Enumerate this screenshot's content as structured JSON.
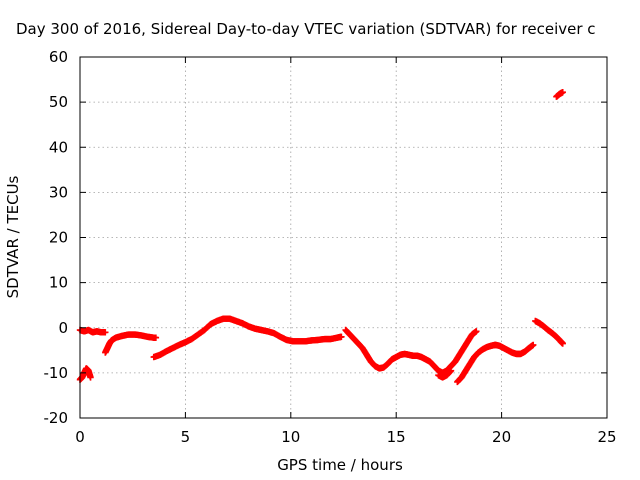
{
  "chart_data": {
    "type": "scatter",
    "title": "Day 300 of 2016, Sidereal Day-to-day VTEC variation (SDTVAR) for receiver c",
    "xlabel": "GPS time / hours",
    "ylabel": "SDTVAR / TECUs",
    "xlim": [
      0,
      25
    ],
    "ylim": [
      -20,
      60
    ],
    "xticks": [
      0,
      5,
      10,
      15,
      20,
      25
    ],
    "yticks": [
      -20,
      -10,
      0,
      10,
      20,
      30,
      40,
      50,
      60
    ],
    "x_tick_labels": [
      "0",
      "5",
      "10",
      "15",
      "20",
      "25"
    ],
    "y_tick_labels": [
      "-20",
      "-10",
      "0",
      "10",
      "20",
      "30",
      "40",
      "50",
      "60"
    ],
    "grid": true,
    "legend": "none",
    "marker": "plus",
    "color": "#ff0000",
    "series": [
      {
        "points": [
          [
            0.0,
            -11.5
          ],
          [
            0.1,
            -11.0
          ],
          [
            0.2,
            -10.0
          ],
          [
            0.3,
            -9.0
          ],
          [
            0.4,
            -9.5
          ],
          [
            0.5,
            -11.0
          ]
        ]
      },
      {
        "points": [
          [
            0.0,
            -0.5
          ],
          [
            0.2,
            -0.8
          ],
          [
            0.4,
            -0.5
          ],
          [
            0.6,
            -1.0
          ],
          [
            0.8,
            -0.8
          ],
          [
            1.0,
            -1.0
          ],
          [
            1.2,
            -1.0
          ]
        ]
      },
      {
        "points": [
          [
            1.2,
            -5.5
          ],
          [
            1.3,
            -4.5
          ],
          [
            1.4,
            -3.5
          ],
          [
            1.5,
            -2.8
          ],
          [
            1.7,
            -2.2
          ],
          [
            2.0,
            -1.8
          ],
          [
            2.3,
            -1.5
          ],
          [
            2.6,
            -1.5
          ],
          [
            2.9,
            -1.7
          ],
          [
            3.2,
            -2.0
          ],
          [
            3.5,
            -2.2
          ],
          [
            3.6,
            -2.2
          ]
        ]
      },
      {
        "points": [
          [
            3.5,
            -6.5
          ],
          [
            3.8,
            -6.0
          ],
          [
            4.1,
            -5.2
          ],
          [
            4.4,
            -4.5
          ],
          [
            4.7,
            -3.8
          ],
          [
            5.0,
            -3.2
          ],
          [
            5.3,
            -2.5
          ],
          [
            5.6,
            -1.5
          ],
          [
            5.9,
            -0.5
          ],
          [
            6.2,
            0.8
          ],
          [
            6.5,
            1.5
          ],
          [
            6.8,
            2.0
          ],
          [
            7.1,
            2.0
          ],
          [
            7.4,
            1.5
          ],
          [
            7.7,
            1.0
          ],
          [
            8.0,
            0.3
          ],
          [
            8.3,
            -0.2
          ],
          [
            8.6,
            -0.5
          ],
          [
            8.9,
            -0.8
          ],
          [
            9.2,
            -1.2
          ],
          [
            9.5,
            -2.0
          ],
          [
            9.8,
            -2.7
          ],
          [
            10.1,
            -3.0
          ],
          [
            10.4,
            -3.0
          ],
          [
            10.7,
            -3.0
          ],
          [
            11.0,
            -2.8
          ],
          [
            11.3,
            -2.7
          ],
          [
            11.6,
            -2.5
          ],
          [
            11.9,
            -2.5
          ],
          [
            12.2,
            -2.2
          ],
          [
            12.4,
            -2.0
          ]
        ]
      },
      {
        "points": [
          [
            12.6,
            -0.5
          ],
          [
            12.8,
            -1.5
          ],
          [
            13.0,
            -2.5
          ],
          [
            13.2,
            -3.5
          ],
          [
            13.4,
            -4.5
          ],
          [
            13.6,
            -6.0
          ],
          [
            13.8,
            -7.5
          ],
          [
            14.0,
            -8.5
          ],
          [
            14.2,
            -9.0
          ],
          [
            14.4,
            -8.8
          ],
          [
            14.6,
            -8.0
          ],
          [
            14.8,
            -7.0
          ],
          [
            15.0,
            -6.5
          ],
          [
            15.2,
            -6.0
          ],
          [
            15.4,
            -5.8
          ],
          [
            15.6,
            -6.0
          ],
          [
            15.8,
            -6.2
          ],
          [
            16.0,
            -6.2
          ],
          [
            16.2,
            -6.5
          ],
          [
            16.4,
            -7.0
          ],
          [
            16.6,
            -7.5
          ],
          [
            16.8,
            -8.5
          ],
          [
            17.0,
            -9.5
          ],
          [
            17.2,
            -10.0
          ],
          [
            17.4,
            -9.5
          ],
          [
            17.6,
            -8.5
          ],
          [
            17.8,
            -7.5
          ],
          [
            18.0,
            -6.0
          ],
          [
            18.2,
            -4.5
          ],
          [
            18.4,
            -3.0
          ],
          [
            18.6,
            -1.5
          ],
          [
            18.8,
            -0.8
          ]
        ]
      },
      {
        "points": [
          [
            17.0,
            -10.5
          ],
          [
            17.2,
            -11.0
          ],
          [
            17.4,
            -10.5
          ],
          [
            17.6,
            -9.5
          ]
        ]
      },
      {
        "points": [
          [
            17.9,
            -12.0
          ],
          [
            18.1,
            -11.0
          ],
          [
            18.3,
            -9.5
          ],
          [
            18.5,
            -8.0
          ],
          [
            18.7,
            -6.5
          ],
          [
            18.9,
            -5.5
          ],
          [
            19.1,
            -4.8
          ],
          [
            19.3,
            -4.3
          ],
          [
            19.5,
            -4.0
          ],
          [
            19.7,
            -3.8
          ],
          [
            19.9,
            -4.0
          ],
          [
            20.1,
            -4.5
          ],
          [
            20.3,
            -5.0
          ],
          [
            20.5,
            -5.5
          ],
          [
            20.7,
            -5.8
          ],
          [
            20.9,
            -5.8
          ],
          [
            21.1,
            -5.3
          ],
          [
            21.3,
            -4.5
          ],
          [
            21.5,
            -3.8
          ]
        ]
      },
      {
        "points": [
          [
            21.6,
            1.5
          ],
          [
            21.8,
            1.0
          ],
          [
            22.0,
            0.3
          ],
          [
            22.2,
            -0.5
          ],
          [
            22.4,
            -1.2
          ],
          [
            22.6,
            -2.0
          ],
          [
            22.8,
            -3.0
          ],
          [
            22.9,
            -3.5
          ]
        ]
      },
      {
        "points": [
          [
            22.6,
            51.2
          ],
          [
            22.75,
            51.8
          ],
          [
            22.9,
            52.2
          ]
        ]
      }
    ]
  }
}
